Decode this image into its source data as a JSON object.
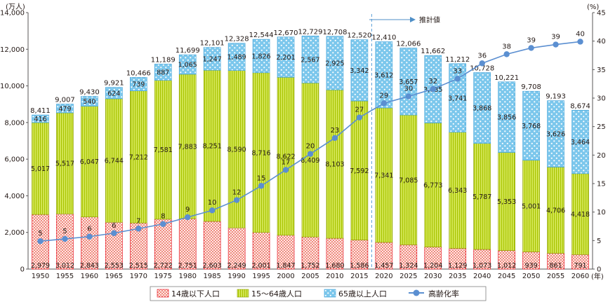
{
  "chart_data": {
    "type": "bar",
    "stacked": true,
    "left_unit": "(万人)",
    "right_unit": "(%)",
    "x_unit": "(年)",
    "forecast_label": "推計値",
    "categories": [
      "1950",
      "1955",
      "1960",
      "1965",
      "1970",
      "1975",
      "1980",
      "1985",
      "1990",
      "1995",
      "2000",
      "2005",
      "2010",
      "2015",
      "2020",
      "2025",
      "2030",
      "2035",
      "2040",
      "2045",
      "2050",
      "2055",
      "2060"
    ],
    "forecast_start": "2020",
    "y_left": {
      "min": 0,
      "max": 14000,
      "ticks": [
        "0",
        "2,000",
        "4,000",
        "6,000",
        "8,000",
        "10,000",
        "12,000",
        "14,000"
      ]
    },
    "y_right": {
      "min": 0,
      "max": 45,
      "ticks": [
        "0",
        "5",
        "10",
        "15",
        "20",
        "25",
        "30",
        "35",
        "40",
        "45"
      ]
    },
    "series": [
      {
        "name": "14歳以下人口",
        "color": "#e60012",
        "pattern": "dots",
        "values": [
          2979,
          3012,
          2843,
          2553,
          2515,
          2722,
          2751,
          2603,
          2249,
          2001,
          1847,
          1752,
          1680,
          1586,
          1457,
          1324,
          1204,
          1129,
          1073,
          1012,
          939,
          861,
          791
        ],
        "labels": [
          "2,979",
          "3,012",
          "2,843",
          "2,553",
          "2,515",
          "2,722",
          "2,751",
          "2,603",
          "2,249",
          "2,001",
          "1,847",
          "1,752",
          "1,680",
          "1,586",
          "1,457",
          "1,324",
          "1,204",
          "1,129",
          "1,073",
          "1,012",
          "939",
          "861",
          "791"
        ]
      },
      {
        "name": "15～64歳人口",
        "color": "#b8d200",
        "pattern": "stripes",
        "values": [
          5017,
          5517,
          6047,
          6744,
          7212,
          7581,
          7883,
          8251,
          8590,
          8716,
          8622,
          8409,
          8103,
          7592,
          7341,
          7085,
          6773,
          6343,
          5787,
          5353,
          5001,
          4706,
          4418
        ],
        "labels": [
          "5,017",
          "5,517",
          "6,047",
          "6,744",
          "7,212",
          "7,581",
          "7,883",
          "8,251",
          "8,590",
          "8,716",
          "8,622",
          "8,409",
          "8,103",
          "7,592",
          "7,341",
          "7,085",
          "6,773",
          "6,343",
          "5,787",
          "5,353",
          "5,001",
          "4,706",
          "4,418"
        ]
      },
      {
        "name": "65歳以上人口",
        "color": "#5bb4e5",
        "pattern": "dots",
        "values": [
          416,
          479,
          540,
          624,
          739,
          887,
          1065,
          1247,
          1489,
          1826,
          2201,
          2567,
          2925,
          3342,
          3612,
          3657,
          3685,
          3741,
          3868,
          3856,
          3768,
          3626,
          3464
        ],
        "labels": [
          "416",
          "479",
          "540",
          "624",
          "739",
          "887",
          "1,065",
          "1,247",
          "1,489",
          "1,826",
          "2,201",
          "2,567",
          "2,925",
          "3,342",
          "3,612",
          "3,657",
          "3,685",
          "3,741",
          "3,868",
          "3,856",
          "3,768",
          "3,626",
          "3,464"
        ]
      }
    ],
    "totals": [
      "8,411",
      "9,007",
      "9,430",
      "9,921",
      "10,466",
      "11,189",
      "11,699",
      "12,101",
      "12,328",
      "12,544",
      "12,670",
      "12,729",
      "12,708",
      "12,520",
      "12,410",
      "12,066",
      "11,662",
      "11,212",
      "10,728",
      "10,221",
      "9,708",
      "9,193",
      "8,674"
    ],
    "line": {
      "name": "高齢化率",
      "color": "#5b8fd1",
      "values": [
        4.9,
        5.3,
        5.7,
        6.3,
        7.1,
        7.9,
        9.1,
        10.3,
        12.1,
        14.6,
        17.4,
        20.2,
        23.0,
        26.6,
        29.1,
        30.3,
        31.6,
        33.4,
        36.1,
        37.7,
        38.8,
        39.4,
        39.9
      ],
      "labels": [
        "5",
        "5",
        "6",
        "6",
        "7",
        "8",
        "9",
        "10",
        "12",
        "15",
        "17",
        "20",
        "23",
        "27",
        "29",
        "30",
        "32",
        "33",
        "36",
        "38",
        "39",
        "39",
        "40"
      ]
    },
    "legend": [
      "14歳以下人口",
      "15～64歳人口",
      "65歳以上人口",
      "高齢化率"
    ]
  }
}
